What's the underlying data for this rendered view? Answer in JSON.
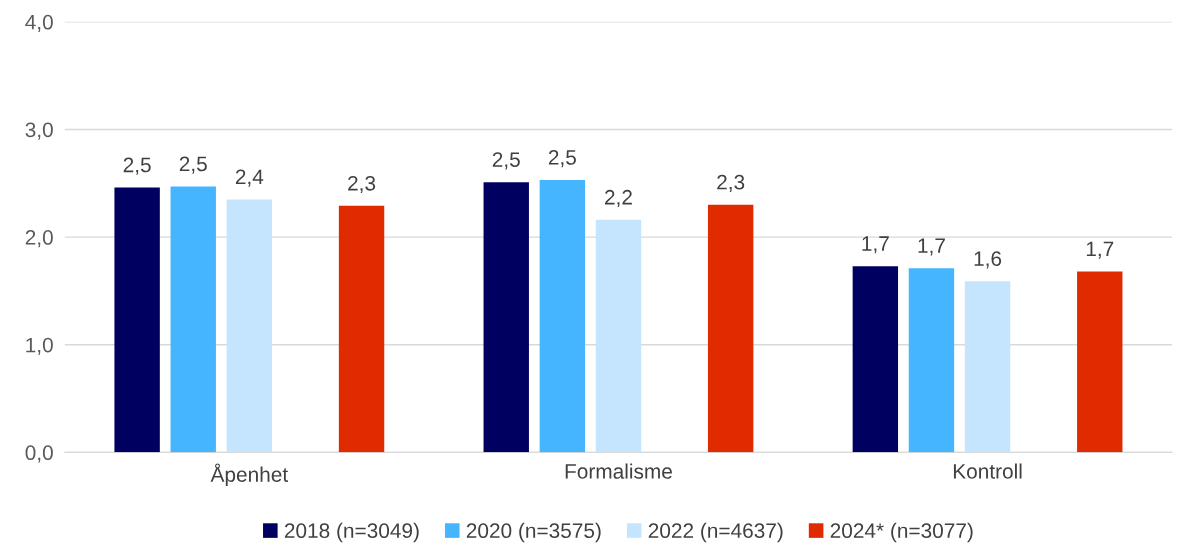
{
  "chart_data": {
    "type": "bar",
    "categories": [
      "Åpenhet",
      "Formalisme",
      "Kontroll"
    ],
    "series": [
      {
        "name": "2018 (n=3049)",
        "color": "#000060",
        "values": [
          2.46,
          2.51,
          1.73
        ],
        "value_labels": [
          "2,5",
          "2,5",
          "1,7"
        ]
      },
      {
        "name": "2020 (n=3575)",
        "color": "#45b5ff",
        "values": [
          2.47,
          2.53,
          1.71
        ],
        "value_labels": [
          "2,5",
          "2,5",
          "1,7"
        ]
      },
      {
        "name": "2022 (n=4637)",
        "color": "#c5e5ff",
        "values": [
          2.35,
          2.16,
          1.59
        ],
        "value_labels": [
          "2,4",
          "2,2",
          "1,6"
        ]
      },
      {
        "values": [
          null,
          null,
          null
        ]
      },
      {
        "name": "2024* (n=3077)",
        "color": "#e02a00",
        "values": [
          2.29,
          2.3,
          1.68
        ],
        "value_labels": [
          "2,3",
          "2,3",
          "1,7"
        ]
      }
    ],
    "ylim": [
      0,
      4
    ],
    "yticks": [
      {
        "value": 0,
        "label": "0,0"
      },
      {
        "value": 1,
        "label": "1,0"
      },
      {
        "value": 2,
        "label": "2,0"
      },
      {
        "value": 3,
        "label": "3,0"
      },
      {
        "value": 4,
        "label": "4,0"
      }
    ],
    "grid": "y",
    "legend": "bottom"
  }
}
